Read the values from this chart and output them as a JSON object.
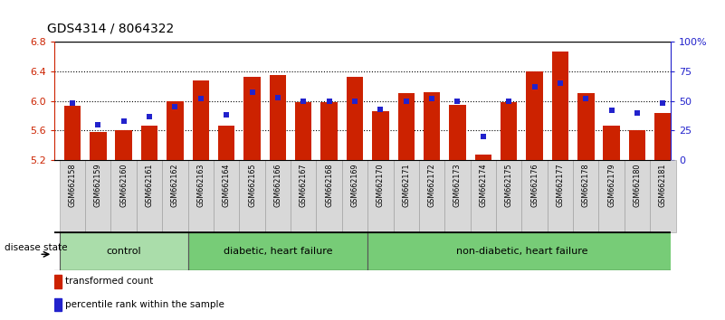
{
  "title": "GDS4314 / 8064322",
  "samples": [
    "GSM662158",
    "GSM662159",
    "GSM662160",
    "GSM662161",
    "GSM662162",
    "GSM662163",
    "GSM662164",
    "GSM662165",
    "GSM662166",
    "GSM662167",
    "GSM662168",
    "GSM662169",
    "GSM662170",
    "GSM662171",
    "GSM662172",
    "GSM662173",
    "GSM662174",
    "GSM662175",
    "GSM662176",
    "GSM662177",
    "GSM662178",
    "GSM662179",
    "GSM662180",
    "GSM662181"
  ],
  "bar_values": [
    5.93,
    5.58,
    5.6,
    5.67,
    5.99,
    6.28,
    5.67,
    6.32,
    6.35,
    5.98,
    5.98,
    6.32,
    5.86,
    6.1,
    6.12,
    5.95,
    5.27,
    5.98,
    6.4,
    6.67,
    6.1,
    5.66,
    5.6,
    5.83
  ],
  "percentile_values": [
    48,
    30,
    33,
    37,
    45,
    52,
    38,
    57,
    53,
    50,
    50,
    50,
    43,
    50,
    52,
    50,
    20,
    50,
    62,
    65,
    52,
    42,
    40,
    48
  ],
  "ylim_left": [
    5.2,
    6.8
  ],
  "ylim_right": [
    0,
    100
  ],
  "yticks_left": [
    5.2,
    5.6,
    6.0,
    6.4,
    6.8
  ],
  "yticks_right": [
    0,
    25,
    50,
    75,
    100
  ],
  "ytick_labels_right": [
    "0",
    "25",
    "50",
    "75",
    "100%"
  ],
  "bar_color": "#cc2200",
  "square_color": "#2222cc",
  "group_defs": [
    [
      0,
      4,
      "#aaddaa",
      "control"
    ],
    [
      5,
      11,
      "#77cc77",
      "diabetic, heart failure"
    ],
    [
      12,
      23,
      "#77cc77",
      "non-diabetic, heart failure"
    ]
  ],
  "disease_state_label": "disease state",
  "legend_bar_label": "transformed count",
  "legend_square_label": "percentile rank within the sample",
  "hgrid_lines": [
    5.6,
    6.0,
    6.4
  ],
  "bar_width": 0.65,
  "xlim": [
    -0.7,
    23.3
  ]
}
